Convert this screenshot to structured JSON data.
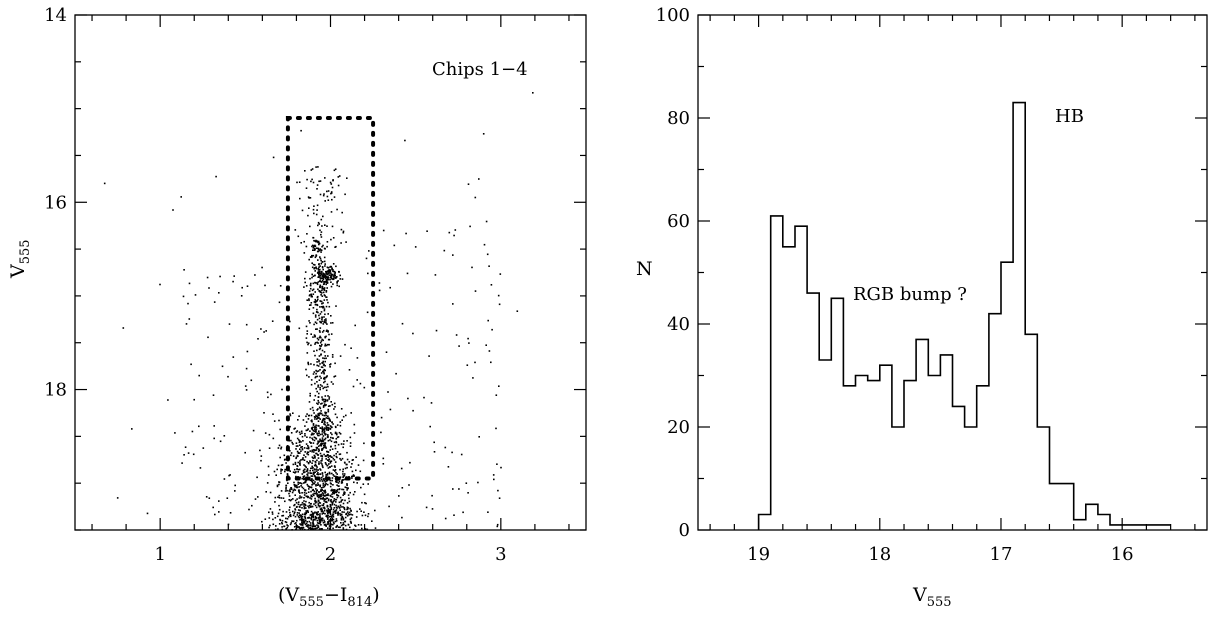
{
  "chart_data": [
    {
      "type": "scatter",
      "xlabel": "(V",
      "xlabel_sub1": "555",
      "xlabel_mid": "−I",
      "xlabel_sub2": "814",
      "xlabel_end": ")",
      "ylabel": "V",
      "ylabel_sub": "555",
      "xlim": [
        0.5,
        3.5
      ],
      "ylim": [
        19.5,
        14
      ],
      "y_inverted": true,
      "x_ticks": [
        1,
        2,
        3
      ],
      "x_tick_labels": [
        "1",
        "2",
        "3"
      ],
      "y_ticks": [
        14,
        16,
        18
      ],
      "y_tick_labels": [
        "14",
        "16",
        "18"
      ],
      "annotation": "Chips 1−4",
      "selection_box": {
        "x": [
          1.75,
          2.25
        ],
        "y": [
          15.1,
          18.95
        ],
        "style": "dotted"
      },
      "points_note": "dense cloud of stars: main sequence / subgiant branch near (V-I)~1.9, V~17-19.5"
    },
    {
      "type": "histogram",
      "xlabel": "V",
      "xlabel_sub": "555",
      "ylabel": "N",
      "xlim": [
        19.5,
        15.3
      ],
      "ylim": [
        0,
        100
      ],
      "x_inverted": true,
      "x_ticks": [
        19,
        18,
        17,
        16
      ],
      "x_tick_labels": [
        "19",
        "18",
        "17",
        "16"
      ],
      "y_ticks": [
        0,
        20,
        40,
        60,
        80,
        100
      ],
      "y_tick_labels": [
        "0",
        "20",
        "40",
        "60",
        "80",
        "100"
      ],
      "bin_width": 0.1,
      "bins_start": 19.0,
      "counts": [
        3,
        61,
        55,
        59,
        46,
        33,
        45,
        28,
        30,
        29,
        32,
        20,
        29,
        37,
        30,
        34,
        24,
        20,
        28,
        42,
        52,
        83,
        38,
        20,
        9,
        9,
        2,
        5,
        3,
        1,
        1,
        1,
        1,
        1
      ],
      "annotations": [
        "RGB bump ?",
        "HB"
      ]
    }
  ]
}
